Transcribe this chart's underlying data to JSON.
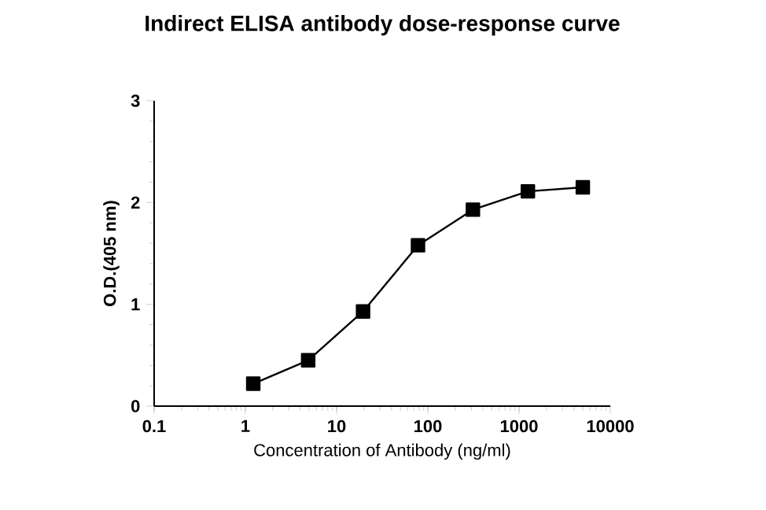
{
  "chart_data": {
    "type": "line",
    "title": "Indirect ELISA antibody dose-response curve",
    "xlabel": "Concentration of Antibody (ng/ml)",
    "ylabel": "O.D.(405 nm)",
    "log": "x",
    "marker": "square",
    "line_style": "solid",
    "grid": false,
    "xlim": [
      0.1,
      10000
    ],
    "xticks": [
      0.1,
      1,
      10,
      100,
      1000,
      10000
    ],
    "ylim": [
      0,
      3
    ],
    "yticks": [
      0,
      1,
      2,
      3
    ],
    "series": [
      {
        "color": "#000000",
        "x": [
          1.22,
          4.88,
          19.5,
          78,
          312,
          1250,
          5000
        ],
        "values": [
          0.22,
          0.45,
          0.93,
          1.58,
          1.93,
          2.11,
          2.15
        ]
      }
    ]
  }
}
